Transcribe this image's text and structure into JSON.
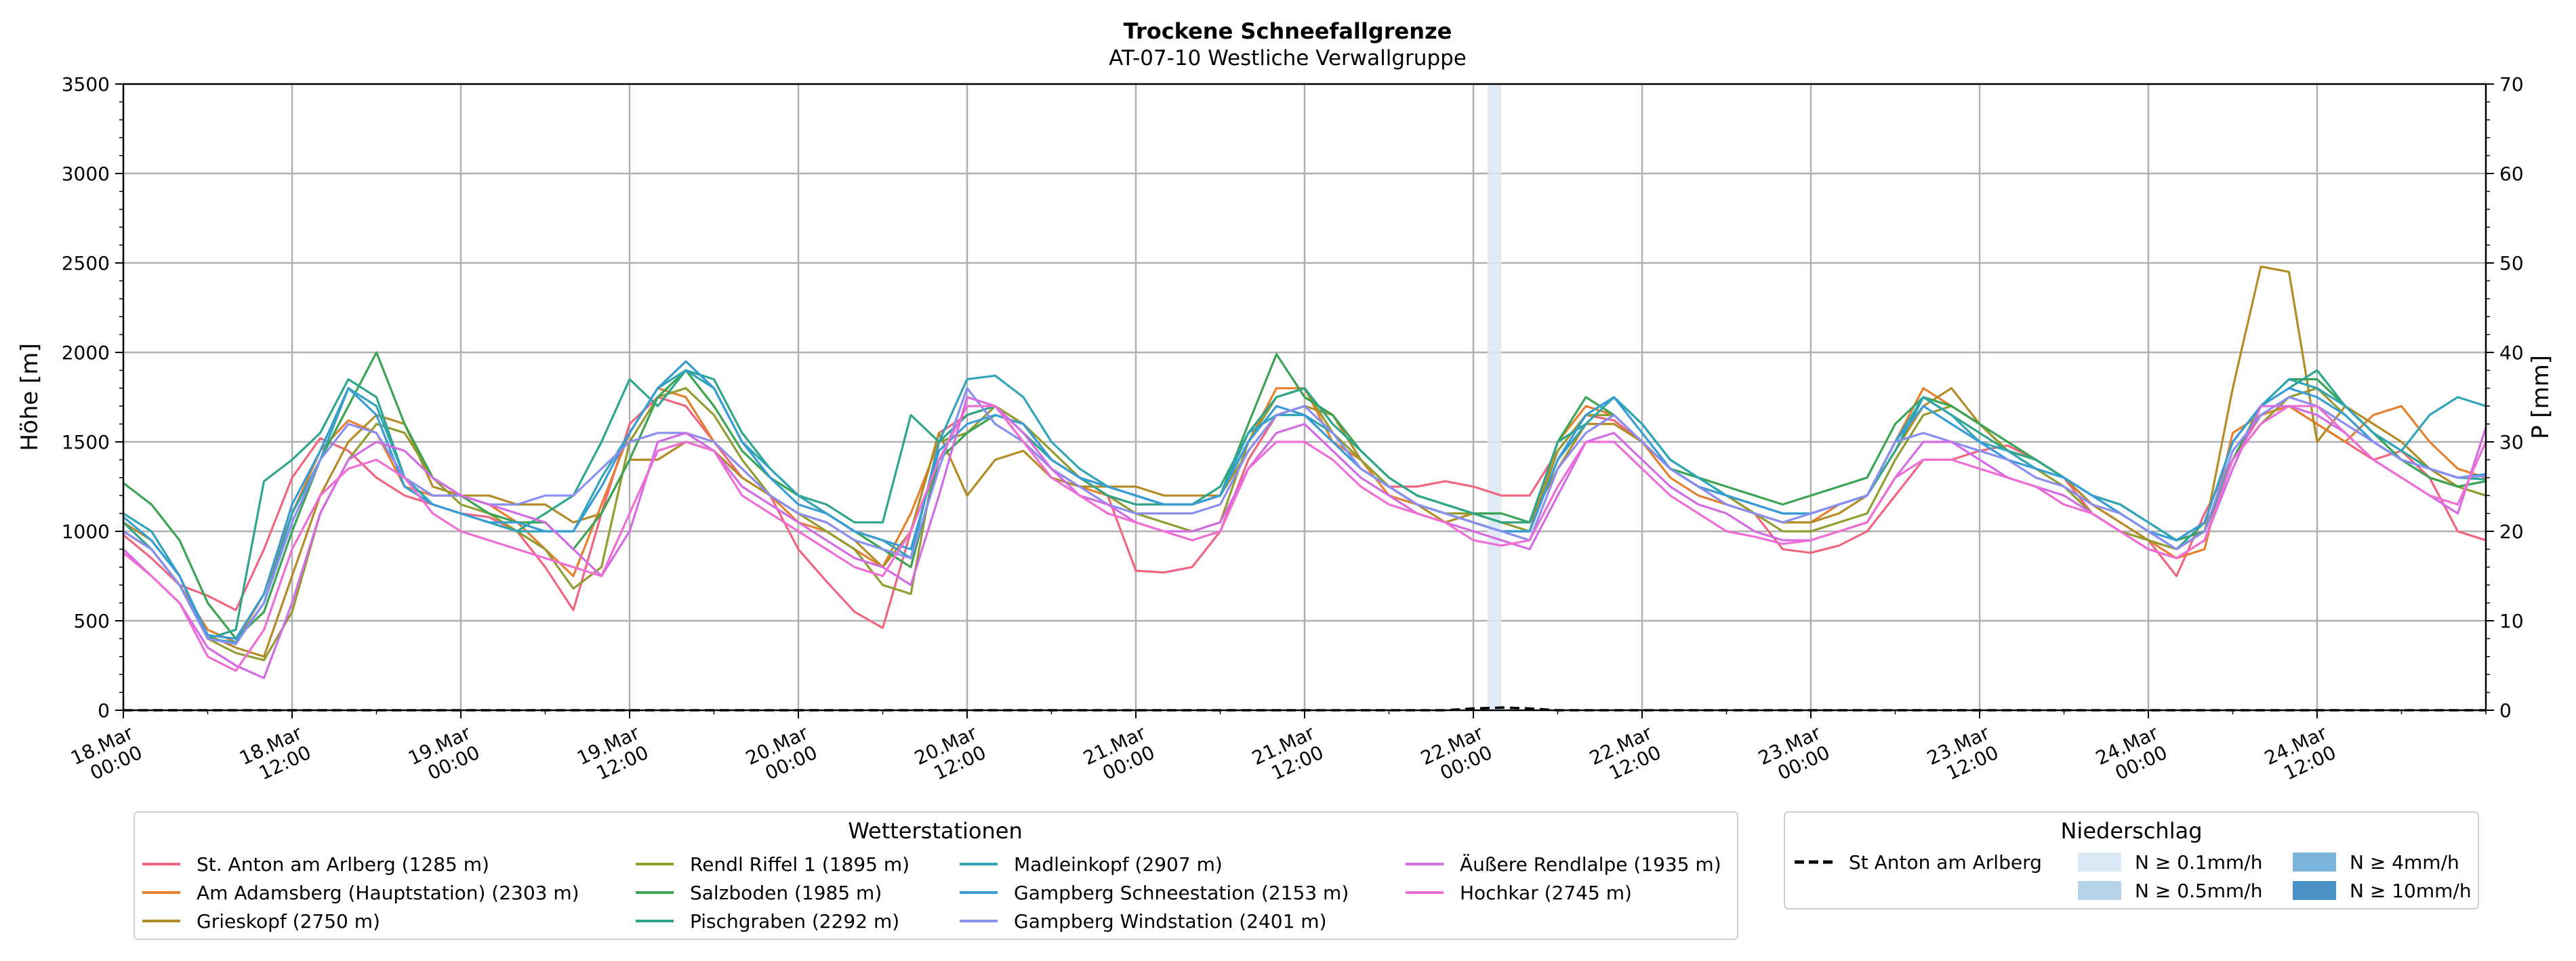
{
  "chart_data": {
    "type": "line",
    "title": "Trockene Schneefallgrenze",
    "subtitle": "AT-07-10 Westliche Verwallgruppe",
    "ylabel": "Höhe [m]",
    "ylabel_right": "P [mm]",
    "ylim": [
      0,
      3500
    ],
    "ylim_right": [
      0,
      70
    ],
    "yticks": [
      0,
      500,
      1000,
      1500,
      2000,
      2500,
      3000,
      3500
    ],
    "yticks_right": [
      0,
      10,
      20,
      30,
      40,
      50,
      60,
      70
    ],
    "x_range_hours": [
      0,
      168
    ],
    "x_step_hours": 2,
    "xticks": [
      {
        "h": 0,
        "l1": "18.Mar",
        "l2": "00:00"
      },
      {
        "h": 12,
        "l1": "18.Mar",
        "l2": "12:00"
      },
      {
        "h": 24,
        "l1": "19.Mar",
        "l2": "00:00"
      },
      {
        "h": 36,
        "l1": "19.Mar",
        "l2": "12:00"
      },
      {
        "h": 48,
        "l1": "20.Mar",
        "l2": "00:00"
      },
      {
        "h": 60,
        "l1": "20.Mar",
        "l2": "12:00"
      },
      {
        "h": 72,
        "l1": "21.Mar",
        "l2": "00:00"
      },
      {
        "h": 84,
        "l1": "21.Mar",
        "l2": "12:00"
      },
      {
        "h": 96,
        "l1": "22.Mar",
        "l2": "00:00"
      },
      {
        "h": 108,
        "l1": "22.Mar",
        "l2": "12:00"
      },
      {
        "h": 120,
        "l1": "23.Mar",
        "l2": "00:00"
      },
      {
        "h": 132,
        "l1": "23.Mar",
        "l2": "12:00"
      },
      {
        "h": 144,
        "l1": "24.Mar",
        "l2": "00:00"
      },
      {
        "h": 156,
        "l1": "24.Mar",
        "l2": "12:00"
      }
    ],
    "grid": true,
    "series": [
      {
        "name": "St. Anton am Arlberg (1285 m)",
        "color": "#f0657f",
        "values": [
          980,
          850,
          700,
          640,
          560,
          900,
          1300,
          1520,
          1450,
          1300,
          1200,
          1150,
          1100,
          1080,
          1000,
          800,
          560,
          1100,
          1600,
          1750,
          1700,
          1500,
          1300,
          1200,
          900,
          720,
          550,
          460,
          1000,
          1550,
          1650,
          1700,
          1600,
          1400,
          1300,
          1200,
          780,
          770,
          800,
          1000,
          1400,
          1650,
          1650,
          1500,
          1350,
          1250,
          1250,
          1280,
          1250,
          1200,
          1200,
          1450,
          1650,
          1620,
          1500,
          1350,
          1250,
          1200,
          1100,
          900,
          880,
          920,
          1000,
          1200,
          1400,
          1400,
          1450,
          1480,
          1400,
          1300,
          1100,
          1000,
          950,
          750,
          1100,
          1400,
          1650,
          1700,
          1600,
          1500,
          1400,
          1450,
          1300,
          1000,
          950
        ]
      },
      {
        "name": "Am Adamsberg (Hauptstation) (2303 m)",
        "color": "#e5802f",
        "values": [
          1000,
          900,
          700,
          450,
          380,
          650,
          1100,
          1450,
          1620,
          1550,
          1250,
          1200,
          1200,
          1150,
          1050,
          900,
          750,
          1150,
          1550,
          1800,
          1750,
          1500,
          1350,
          1200,
          1050,
          1000,
          900,
          800,
          1100,
          1500,
          1650,
          1700,
          1500,
          1350,
          1250,
          1200,
          1150,
          1150,
          1150,
          1200,
          1500,
          1800,
          1800,
          1500,
          1400,
          1200,
          1150,
          1100,
          1050,
          1000,
          1000,
          1500,
          1700,
          1650,
          1500,
          1300,
          1200,
          1150,
          1100,
          1050,
          1050,
          1150,
          1200,
          1500,
          1800,
          1700,
          1600,
          1450,
          1400,
          1300,
          1150,
          1050,
          950,
          850,
          900,
          1550,
          1650,
          1700,
          1600,
          1500,
          1650,
          1700,
          1500,
          1350,
          1300
        ]
      },
      {
        "name": "Grieskopf (2750 m)",
        "color": "#b38c28",
        "values": [
          1050,
          950,
          750,
          420,
          350,
          300,
          750,
          1200,
          1500,
          1650,
          1600,
          1250,
          1200,
          1200,
          1150,
          1150,
          1050,
          1100,
          1400,
          1400,
          1500,
          1450,
          1300,
          1200,
          1100,
          1050,
          950,
          800,
          1000,
          1550,
          1200,
          1400,
          1450,
          1300,
          1250,
          1250,
          1250,
          1200,
          1200,
          1200,
          1450,
          1650,
          1700,
          1650,
          1400,
          1250,
          1150,
          1050,
          1100,
          1050,
          1050,
          1350,
          1600,
          1600,
          1500,
          1350,
          1250,
          1150,
          1100,
          1050,
          1050,
          1100,
          1200,
          1450,
          1700,
          1800,
          1600,
          1450,
          1400,
          1300,
          1150,
          1050,
          950,
          900,
          1000,
          1800,
          2480,
          2450,
          1500,
          1700,
          1600,
          1500,
          1350,
          1250,
          1200
        ]
      },
      {
        "name": "Rendl Riffel 1 (1895 m)",
        "color": "#929c31",
        "values": [
          1000,
          900,
          700,
          400,
          320,
          280,
          550,
          1100,
          1400,
          1600,
          1550,
          1300,
          1150,
          1100,
          1000,
          900,
          680,
          800,
          1500,
          1750,
          1800,
          1650,
          1400,
          1200,
          1100,
          1000,
          900,
          700,
          650,
          1500,
          1550,
          1700,
          1600,
          1450,
          1300,
          1200,
          1100,
          1050,
          1000,
          1050,
          1500,
          1750,
          1800,
          1550,
          1400,
          1250,
          1150,
          1100,
          1100,
          1050,
          1000,
          1450,
          1650,
          1650,
          1500,
          1350,
          1250,
          1200,
          1100,
          1000,
          1000,
          1050,
          1100,
          1400,
          1650,
          1700,
          1600,
          1450,
          1350,
          1250,
          1100,
          1000,
          950,
          900,
          1000,
          1400,
          1600,
          1750,
          1800,
          1650,
          1500,
          1400,
          1300,
          1250,
          1200
        ]
      },
      {
        "name": "Salzboden (1985 m)",
        "color": "#3ba454",
        "values": [
          1270,
          1150,
          950,
          600,
          400,
          550,
          1000,
          1400,
          1700,
          2000,
          1600,
          1300,
          1200,
          1100,
          1050,
          1050,
          900,
          1100,
          1400,
          1750,
          1900,
          1700,
          1450,
          1300,
          1200,
          1100,
          1000,
          900,
          800,
          1400,
          1550,
          1650,
          1600,
          1400,
          1300,
          1250,
          1200,
          1150,
          1150,
          1200,
          1600,
          1990,
          1750,
          1650,
          1450,
          1300,
          1200,
          1150,
          1100,
          1100,
          1050,
          1500,
          1750,
          1650,
          1500,
          1350,
          1300,
          1250,
          1200,
          1150,
          1200,
          1250,
          1300,
          1600,
          1750,
          1700,
          1600,
          1500,
          1400,
          1300,
          1200,
          1150,
          1050,
          950,
          1000,
          1400,
          1700,
          1850,
          1850,
          1700,
          1550,
          1400,
          1300,
          1250,
          1280
        ]
      },
      {
        "name": "Pischgraben (2292 m)",
        "color": "#2fa68b",
        "values": [
          1050,
          900,
          700,
          400,
          450,
          1280,
          1400,
          1550,
          1850,
          1750,
          1300,
          1150,
          1100,
          1050,
          1000,
          1100,
          1200,
          1500,
          1850,
          1700,
          1900,
          1850,
          1550,
          1350,
          1200,
          1150,
          1050,
          1050,
          1650,
          1500,
          1650,
          1700,
          1550,
          1400,
          1300,
          1200,
          1150,
          1150,
          1150,
          1250,
          1550,
          1750,
          1800,
          1600,
          1450,
          1300,
          1200,
          1150,
          1100,
          1050,
          1050,
          1500,
          1600,
          1750,
          1600,
          1400,
          1300,
          1200,
          1150,
          1100,
          1100,
          1150,
          1200,
          1450,
          1750,
          1650,
          1550,
          1450,
          1400,
          1300,
          1200,
          1100,
          1000,
          900,
          1050,
          1500,
          1700,
          1800,
          1900,
          1700,
          1550,
          1450,
          1350,
          1300,
          1290
        ]
      },
      {
        "name": "Madleinkopf (2907 m)",
        "color": "#31a5b6",
        "values": [
          1100,
          1000,
          750,
          400,
          380,
          600,
          1100,
          1400,
          1800,
          1700,
          1300,
          1150,
          1100,
          1050,
          1000,
          1000,
          1000,
          1300,
          1550,
          1800,
          1900,
          1800,
          1500,
          1350,
          1200,
          1100,
          1000,
          950,
          850,
          1500,
          1850,
          1870,
          1750,
          1500,
          1350,
          1250,
          1200,
          1150,
          1150,
          1200,
          1550,
          1650,
          1650,
          1550,
          1350,
          1250,
          1150,
          1100,
          1050,
          1000,
          1000,
          1400,
          1600,
          1750,
          1600,
          1400,
          1300,
          1200,
          1150,
          1100,
          1100,
          1150,
          1200,
          1500,
          1750,
          1650,
          1500,
          1450,
          1350,
          1300,
          1200,
          1150,
          1050,
          950,
          1050,
          1500,
          1700,
          1850,
          1800,
          1700,
          1550,
          1450,
          1650,
          1750,
          1700
        ]
      },
      {
        "name": "Gampberg Schneestation (2153 m)",
        "color": "#3a9cd6",
        "values": [
          1080,
          950,
          750,
          420,
          400,
          650,
          1150,
          1450,
          1800,
          1650,
          1250,
          1150,
          1100,
          1050,
          1050,
          1000,
          1000,
          1250,
          1550,
          1800,
          1950,
          1800,
          1500,
          1300,
          1150,
          1100,
          1000,
          950,
          900,
          1450,
          1600,
          1650,
          1600,
          1400,
          1300,
          1250,
          1200,
          1150,
          1150,
          1200,
          1500,
          1700,
          1650,
          1500,
          1350,
          1250,
          1150,
          1100,
          1050,
          1000,
          1000,
          1400,
          1650,
          1750,
          1550,
          1350,
          1250,
          1200,
          1150,
          1100,
          1100,
          1150,
          1200,
          1500,
          1700,
          1600,
          1500,
          1400,
          1350,
          1300,
          1200,
          1100,
          1000,
          950,
          1050,
          1500,
          1700,
          1800,
          1750,
          1650,
          1500,
          1400,
          1350,
          1300,
          1320
        ]
      },
      {
        "name": "Gampberg Windstation (2401 m)",
        "color": "#8a8ef0",
        "values": [
          1000,
          900,
          700,
          400,
          370,
          600,
          1050,
          1400,
          1600,
          1550,
          1300,
          1200,
          1200,
          1150,
          1150,
          1200,
          1200,
          1350,
          1500,
          1550,
          1550,
          1500,
          1350,
          1200,
          1100,
          1050,
          950,
          900,
          850,
          1350,
          1800,
          1600,
          1500,
          1350,
          1250,
          1150,
          1100,
          1100,
          1100,
          1150,
          1450,
          1650,
          1700,
          1550,
          1350,
          1250,
          1150,
          1100,
          1050,
          1000,
          950,
          1350,
          1550,
          1650,
          1500,
          1350,
          1250,
          1150,
          1100,
          1050,
          1100,
          1150,
          1200,
          1500,
          1550,
          1500,
          1450,
          1400,
          1300,
          1250,
          1150,
          1100,
          1000,
          900,
          1000,
          1450,
          1650,
          1750,
          1700,
          1600,
          1500,
          1400,
          1350,
          1300,
          1310
        ]
      },
      {
        "name": "Äußere Rendlalpe (1935 m)",
        "color": "#d36ce2",
        "values": [
          900,
          750,
          600,
          350,
          250,
          180,
          600,
          1100,
          1400,
          1500,
          1450,
          1300,
          1200,
          1150,
          1100,
          1050,
          900,
          750,
          1000,
          1500,
          1550,
          1450,
          1250,
          1150,
          1050,
          950,
          850,
          800,
          700,
          1200,
          1750,
          1700,
          1550,
          1350,
          1200,
          1150,
          1050,
          1000,
          1000,
          1050,
          1350,
          1550,
          1600,
          1450,
          1300,
          1200,
          1100,
          1050,
          1000,
          950,
          900,
          1200,
          1500,
          1550,
          1400,
          1250,
          1150,
          1100,
          1000,
          950,
          950,
          1000,
          1050,
          1300,
          1500,
          1500,
          1400,
          1300,
          1250,
          1200,
          1100,
          1000,
          900,
          850,
          950,
          1350,
          1700,
          1700,
          1650,
          1550,
          1400,
          1300,
          1200,
          1100,
          1580
        ]
      },
      {
        "name": "Hochkar (2745 m)",
        "color": "#ee6ed5",
        "values": [
          880,
          750,
          600,
          300,
          220,
          450,
          900,
          1200,
          1350,
          1400,
          1300,
          1100,
          1000,
          950,
          900,
          850,
          800,
          750,
          1100,
          1450,
          1500,
          1450,
          1200,
          1100,
          1000,
          900,
          800,
          750,
          1000,
          1400,
          1700,
          1700,
          1500,
          1300,
          1200,
          1100,
          1050,
          1000,
          950,
          1000,
          1350,
          1500,
          1500,
          1400,
          1250,
          1150,
          1100,
          1050,
          950,
          920,
          950,
          1250,
          1500,
          1500,
          1350,
          1200,
          1100,
          1000,
          970,
          930,
          950,
          1000,
          1050,
          1300,
          1400,
          1400,
          1350,
          1300,
          1250,
          1150,
          1100,
          1000,
          900,
          850,
          950,
          1400,
          1600,
          1700,
          1700,
          1550,
          1400,
          1300,
          1200,
          1150,
          1500
        ]
      }
    ],
    "precip_series": [
      {
        "name": "St Anton am Arlberg",
        "unit": "mm",
        "values": [
          0,
          0,
          0,
          0,
          0,
          0,
          0,
          0,
          0,
          0,
          0,
          0,
          0,
          0,
          0,
          0,
          0,
          0,
          0,
          0,
          0,
          0,
          0,
          0,
          0,
          0,
          0,
          0,
          0,
          0,
          0,
          0,
          0,
          0,
          0,
          0,
          0,
          0,
          0,
          0,
          0,
          0,
          0,
          0,
          0,
          0,
          0,
          0,
          0.2,
          0.3,
          0.2,
          0,
          0,
          0,
          0,
          0,
          0,
          0,
          0,
          0,
          0,
          0,
          0,
          0,
          0,
          0,
          0,
          0,
          0,
          0,
          0,
          0,
          0,
          0,
          0,
          0,
          0,
          0,
          0,
          0,
          0,
          0,
          0,
          0,
          0
        ]
      }
    ],
    "precip_intensity_bands": [
      {
        "start_hour": 97,
        "end_hour": 98,
        "level": "N ≥ 0.1mm/h",
        "color": "#dbe8f5"
      }
    ]
  },
  "legend_stations": {
    "title": "Wetterstationen"
  },
  "legend_precip": {
    "title": "Niederschlag",
    "items": [
      {
        "label": "St Anton am Arlberg",
        "kind": "dashed-line",
        "color": "#000000"
      },
      {
        "label": "N ≥ 0.1mm/h",
        "kind": "box",
        "color": "#dbe8f5"
      },
      {
        "label": "N ≥ 0.5mm/h",
        "kind": "box",
        "color": "#b7d3ea"
      },
      {
        "label": "N ≥ 4mm/h",
        "kind": "box",
        "color": "#7db6dc"
      },
      {
        "label": "N ≥ 10mm/h",
        "kind": "box",
        "color": "#4a93c6"
      }
    ]
  }
}
